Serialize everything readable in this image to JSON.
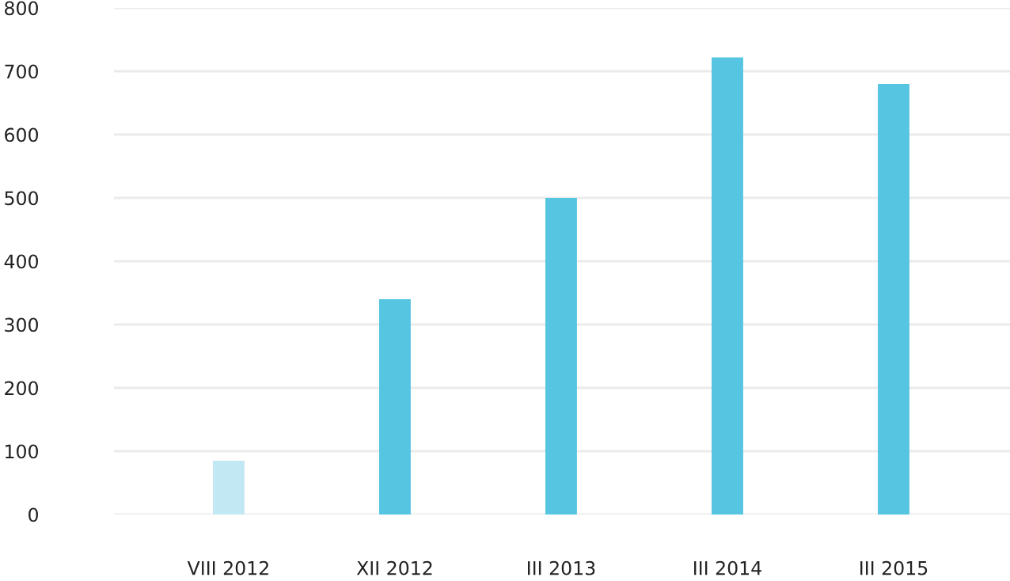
{
  "chart_data": {
    "type": "bar",
    "categories": [
      "VIII 2012",
      "XII 2012",
      "III 2013",
      "III 2014",
      "III 2015"
    ],
    "values": [
      85,
      340,
      500,
      722,
      680
    ],
    "colors": [
      "#c2e8f3",
      "#56c5e2",
      "#56c5e2",
      "#56c5e2",
      "#56c5e2"
    ],
    "ylim": [
      0,
      800
    ],
    "yticks": [
      0,
      100,
      200,
      300,
      400,
      500,
      600,
      700,
      800
    ],
    "grid": "y"
  }
}
